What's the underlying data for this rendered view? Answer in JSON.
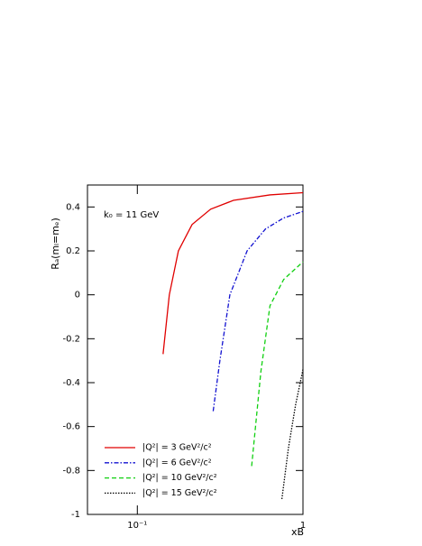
{
  "chart_data": {
    "type": "line",
    "y_label": "Rₐ(mₗ=mₑ)",
    "x_label": "xB",
    "annotation": "k₀ = 11 GeV",
    "log_x": true,
    "xlim": [
      0.05,
      1
    ],
    "xticks": [
      {
        "value": 0.1,
        "label": "10⁻¹"
      },
      1
    ],
    "ylim": [
      -1,
      0.5
    ],
    "yticks": [
      -1,
      -0.8,
      -0.6,
      -0.4,
      -0.2,
      0,
      0.2,
      0.4
    ],
    "legend": "lower left",
    "series": [
      {
        "name": "|Q²| = 3 GeV²/c²",
        "color": "#e00000",
        "linestyle": "solid",
        "x": [
          0.143,
          0.156,
          0.177,
          0.214,
          0.277,
          0.38,
          0.632,
          1
        ],
        "values": [
          -0.27,
          0.0,
          0.2,
          0.32,
          0.39,
          0.43,
          0.455,
          0.465
        ]
      },
      {
        "name": "|Q²| = 6 GeV²/c²",
        "color": "#1010d0",
        "linestyle": "dashdot",
        "x": [
          0.287,
          0.315,
          0.362,
          0.46,
          0.594,
          0.765,
          1
        ],
        "values": [
          -0.53,
          -0.3,
          0.0,
          0.2,
          0.3,
          0.35,
          0.38
        ]
      },
      {
        "name": "|Q²| = 10 GeV²/c²",
        "color": "#10d010",
        "linestyle": "dashed",
        "x": [
          0.49,
          0.557,
          0.632,
          0.765,
          1
        ],
        "values": [
          -0.78,
          -0.35,
          -0.05,
          0.07,
          0.15
        ]
      },
      {
        "name": "|Q²| = 15 GeV²/c²",
        "color": "#000000",
        "linestyle": "dotted",
        "x": [
          0.746,
          0.816,
          0.903,
          1
        ],
        "values": [
          -0.93,
          -0.7,
          -0.5,
          -0.34
        ]
      }
    ]
  }
}
